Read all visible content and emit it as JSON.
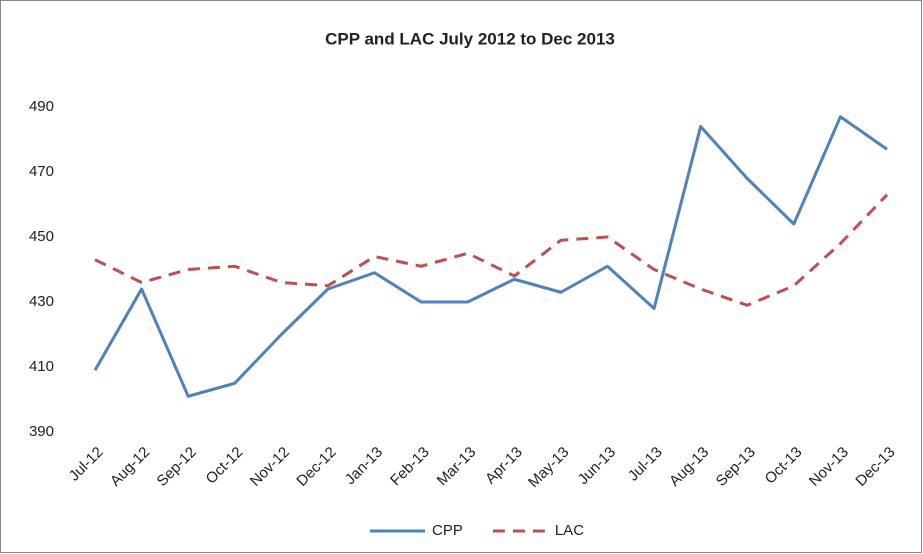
{
  "chart_data": {
    "type": "line",
    "title": "CPP and LAC July 2012 to Dec 2013",
    "categories": [
      "Jul-12",
      "Aug-12",
      "Sep-12",
      "Oct-12",
      "Nov-12",
      "Dec-12",
      "Jan-13",
      "Feb-13",
      "Mar-13",
      "Apr-13",
      "May-13",
      "Jun-13",
      "Jul-13",
      "Aug-13",
      "Sep-13",
      "Oct-13",
      "Nov-13",
      "Dec-13"
    ],
    "series": [
      {
        "name": "CPP",
        "color": "#4f81bd",
        "dash": false,
        "values": [
          409,
          434,
          401,
          405,
          420,
          434,
          439,
          430,
          430,
          437,
          433,
          441,
          428,
          484,
          468,
          454,
          487,
          477
        ]
      },
      {
        "name": "LAC",
        "color": "#c0504d",
        "dash": true,
        "values": [
          443,
          436,
          440,
          441,
          436,
          435,
          444,
          441,
          445,
          438,
          449,
          450,
          440,
          434,
          429,
          435,
          448,
          463
        ]
      }
    ],
    "ylim": [
      390,
      490
    ],
    "yticks": [
      390,
      410,
      430,
      450,
      470,
      490
    ],
    "legend": "bottom"
  }
}
